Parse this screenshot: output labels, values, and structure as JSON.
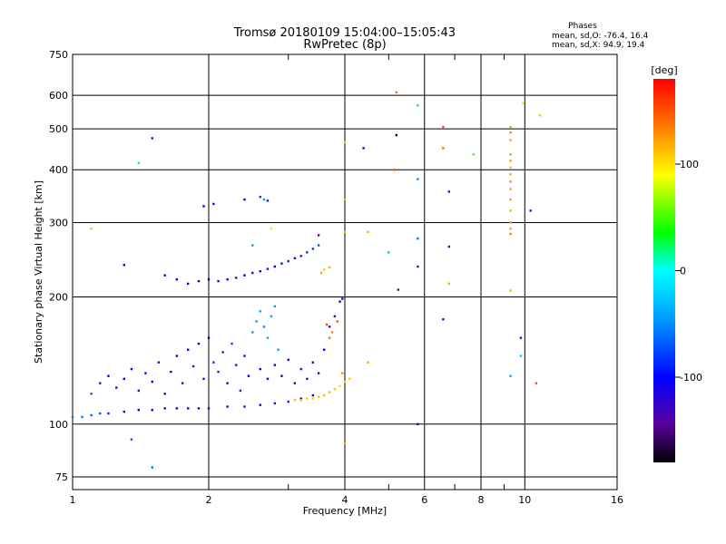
{
  "header": {
    "title_line1": "Tromsø 20180109 15:04:00–15:05:43",
    "title_line2": "RwPretec (8p)",
    "stats_heading": "Phases",
    "stats_o": "mean, sd,O: -76.4, 16.4",
    "stats_x": "mean, sd,X:  94.9, 19.4"
  },
  "colorbar": {
    "label": "[deg]",
    "range": [
      -180,
      180
    ],
    "ticks": [
      {
        "value": 100,
        "label": "100"
      },
      {
        "value": 0,
        "label": "0"
      },
      {
        "value": -100,
        "label": "-100"
      }
    ]
  },
  "chart_data": {
    "type": "scatter",
    "xlabel": "Frequency [MHz]",
    "ylabel": "Stationary phase Virtual Height [km]",
    "xscale": "log",
    "yscale": "log",
    "xlim": [
      1,
      16
    ],
    "ylim": [
      70,
      750
    ],
    "grid": true,
    "x_ticks": [
      {
        "value": 1,
        "label": "1",
        "grid": false
      },
      {
        "value": 2,
        "label": "2",
        "grid": true
      },
      {
        "value": 4,
        "label": "4",
        "grid": true
      },
      {
        "value": 6,
        "label": "6",
        "grid": true
      },
      {
        "value": 8,
        "label": "8",
        "grid": true
      },
      {
        "value": 10,
        "label": "10",
        "grid": true
      },
      {
        "value": 16,
        "label": "16",
        "grid": false
      }
    ],
    "x_minor": [
      3,
      5,
      7,
      9
    ],
    "y_ticks": [
      {
        "value": 75,
        "label": "75"
      },
      {
        "value": 100,
        "label": "100"
      },
      {
        "value": 200,
        "label": "200"
      },
      {
        "value": 300,
        "label": "300"
      },
      {
        "value": 400,
        "label": "400"
      },
      {
        "value": 500,
        "label": "500"
      },
      {
        "value": 600,
        "label": "600"
      },
      {
        "value": 750,
        "label": "750"
      }
    ],
    "color_by": "phase_deg",
    "points": [
      {
        "x": 1.0,
        "y": 104,
        "phase": -60
      },
      {
        "x": 1.05,
        "y": 104,
        "phase": -55
      },
      {
        "x": 1.1,
        "y": 105,
        "phase": -65
      },
      {
        "x": 1.15,
        "y": 106,
        "phase": -70
      },
      {
        "x": 1.2,
        "y": 106,
        "phase": -85
      },
      {
        "x": 1.3,
        "y": 107,
        "phase": -95
      },
      {
        "x": 1.4,
        "y": 108,
        "phase": -100
      },
      {
        "x": 1.5,
        "y": 108,
        "phase": -100
      },
      {
        "x": 1.6,
        "y": 109,
        "phase": -105
      },
      {
        "x": 1.7,
        "y": 109,
        "phase": -105
      },
      {
        "x": 1.8,
        "y": 109,
        "phase": -100
      },
      {
        "x": 1.9,
        "y": 109,
        "phase": -100
      },
      {
        "x": 2.0,
        "y": 109,
        "phase": -95
      },
      {
        "x": 2.2,
        "y": 110,
        "phase": -95
      },
      {
        "x": 2.4,
        "y": 110,
        "phase": -90
      },
      {
        "x": 2.6,
        "y": 111,
        "phase": -95
      },
      {
        "x": 2.8,
        "y": 112,
        "phase": -90
      },
      {
        "x": 3.0,
        "y": 113,
        "phase": -90
      },
      {
        "x": 3.2,
        "y": 115,
        "phase": -95
      },
      {
        "x": 3.4,
        "y": 117,
        "phase": -100
      },
      {
        "x": 1.1,
        "y": 118,
        "phase": -70
      },
      {
        "x": 1.15,
        "y": 125,
        "phase": -90
      },
      {
        "x": 1.2,
        "y": 130,
        "phase": -100
      },
      {
        "x": 1.25,
        "y": 122,
        "phase": -95
      },
      {
        "x": 1.3,
        "y": 128,
        "phase": -105
      },
      {
        "x": 1.35,
        "y": 135,
        "phase": -100
      },
      {
        "x": 1.4,
        "y": 120,
        "phase": -95
      },
      {
        "x": 1.45,
        "y": 132,
        "phase": -110
      },
      {
        "x": 1.5,
        "y": 126,
        "phase": -100
      },
      {
        "x": 1.55,
        "y": 140,
        "phase": -95
      },
      {
        "x": 1.6,
        "y": 118,
        "phase": -110
      },
      {
        "x": 1.65,
        "y": 133,
        "phase": -100
      },
      {
        "x": 1.7,
        "y": 145,
        "phase": -105
      },
      {
        "x": 1.75,
        "y": 125,
        "phase": -95
      },
      {
        "x": 1.8,
        "y": 150,
        "phase": -100
      },
      {
        "x": 1.85,
        "y": 137,
        "phase": -90
      },
      {
        "x": 1.9,
        "y": 155,
        "phase": -100
      },
      {
        "x": 1.95,
        "y": 128,
        "phase": -95
      },
      {
        "x": 2.0,
        "y": 160,
        "phase": -100
      },
      {
        "x": 2.05,
        "y": 140,
        "phase": -80
      },
      {
        "x": 2.1,
        "y": 133,
        "phase": -90
      },
      {
        "x": 2.15,
        "y": 148,
        "phase": -85
      },
      {
        "x": 2.2,
        "y": 125,
        "phase": -95
      },
      {
        "x": 2.25,
        "y": 155,
        "phase": -75
      },
      {
        "x": 2.3,
        "y": 138,
        "phase": -90
      },
      {
        "x": 2.35,
        "y": 120,
        "phase": -85
      },
      {
        "x": 2.4,
        "y": 145,
        "phase": -95
      },
      {
        "x": 2.45,
        "y": 130,
        "phase": -100
      },
      {
        "x": 2.5,
        "y": 165,
        "phase": -45
      },
      {
        "x": 2.55,
        "y": 175,
        "phase": -40
      },
      {
        "x": 2.6,
        "y": 185,
        "phase": -35
      },
      {
        "x": 2.65,
        "y": 170,
        "phase": -50
      },
      {
        "x": 2.7,
        "y": 160,
        "phase": -40
      },
      {
        "x": 2.75,
        "y": 180,
        "phase": -35
      },
      {
        "x": 2.8,
        "y": 190,
        "phase": -45
      },
      {
        "x": 2.85,
        "y": 150,
        "phase": -40
      },
      {
        "x": 2.6,
        "y": 135,
        "phase": -100
      },
      {
        "x": 2.7,
        "y": 128,
        "phase": -110
      },
      {
        "x": 2.8,
        "y": 138,
        "phase": -105
      },
      {
        "x": 2.9,
        "y": 130,
        "phase": -100
      },
      {
        "x": 3.0,
        "y": 142,
        "phase": -110
      },
      {
        "x": 3.1,
        "y": 125,
        "phase": -120
      },
      {
        "x": 3.2,
        "y": 135,
        "phase": -130
      },
      {
        "x": 3.3,
        "y": 128,
        "phase": -140
      },
      {
        "x": 3.4,
        "y": 140,
        "phase": -120
      },
      {
        "x": 3.5,
        "y": 132,
        "phase": -110
      },
      {
        "x": 3.6,
        "y": 150,
        "phase": -100
      },
      {
        "x": 3.7,
        "y": 170,
        "phase": -130
      },
      {
        "x": 3.8,
        "y": 180,
        "phase": -135
      },
      {
        "x": 3.9,
        "y": 195,
        "phase": -100
      },
      {
        "x": 3.1,
        "y": 114,
        "phase": 110
      },
      {
        "x": 3.2,
        "y": 114,
        "phase": 115
      },
      {
        "x": 3.3,
        "y": 115,
        "phase": 110
      },
      {
        "x": 3.4,
        "y": 115,
        "phase": 108
      },
      {
        "x": 3.5,
        "y": 116,
        "phase": 112
      },
      {
        "x": 3.6,
        "y": 117,
        "phase": 110
      },
      {
        "x": 3.7,
        "y": 119,
        "phase": 115
      },
      {
        "x": 3.8,
        "y": 121,
        "phase": 110
      },
      {
        "x": 3.9,
        "y": 123,
        "phase": 100
      },
      {
        "x": 4.0,
        "y": 126,
        "phase": 105
      },
      {
        "x": 4.1,
        "y": 128,
        "phase": 110
      },
      {
        "x": 3.95,
        "y": 132,
        "phase": 130
      },
      {
        "x": 3.7,
        "y": 160,
        "phase": 140
      },
      {
        "x": 3.75,
        "y": 165,
        "phase": 130
      },
      {
        "x": 3.85,
        "y": 175,
        "phase": 150
      },
      {
        "x": 3.65,
        "y": 172,
        "phase": 160
      },
      {
        "x": 1.6,
        "y": 225,
        "phase": -100
      },
      {
        "x": 1.7,
        "y": 220,
        "phase": -105
      },
      {
        "x": 1.8,
        "y": 215,
        "phase": -100
      },
      {
        "x": 1.9,
        "y": 218,
        "phase": -110
      },
      {
        "x": 2.0,
        "y": 220,
        "phase": -100
      },
      {
        "x": 2.1,
        "y": 218,
        "phase": -105
      },
      {
        "x": 2.2,
        "y": 220,
        "phase": -100
      },
      {
        "x": 2.3,
        "y": 222,
        "phase": -95
      },
      {
        "x": 2.4,
        "y": 225,
        "phase": -100
      },
      {
        "x": 2.5,
        "y": 228,
        "phase": -95
      },
      {
        "x": 2.6,
        "y": 230,
        "phase": -100
      },
      {
        "x": 2.7,
        "y": 233,
        "phase": -95
      },
      {
        "x": 2.8,
        "y": 236,
        "phase": -100
      },
      {
        "x": 2.9,
        "y": 240,
        "phase": -95
      },
      {
        "x": 3.0,
        "y": 243,
        "phase": -90
      },
      {
        "x": 3.1,
        "y": 247,
        "phase": -95
      },
      {
        "x": 3.2,
        "y": 250,
        "phase": -90
      },
      {
        "x": 3.3,
        "y": 255,
        "phase": -85
      },
      {
        "x": 3.4,
        "y": 260,
        "phase": -80
      },
      {
        "x": 3.5,
        "y": 265,
        "phase": -70
      },
      {
        "x": 3.5,
        "y": 280,
        "phase": -140
      },
      {
        "x": 3.6,
        "y": 232,
        "phase": 110
      },
      {
        "x": 3.7,
        "y": 235,
        "phase": 115
      },
      {
        "x": 3.55,
        "y": 228,
        "phase": 120
      },
      {
        "x": 1.5,
        "y": 475,
        "phase": -130
      },
      {
        "x": 1.4,
        "y": 415,
        "phase": 20
      },
      {
        "x": 1.1,
        "y": 290,
        "phase": 110
      },
      {
        "x": 1.3,
        "y": 238,
        "phase": -100
      },
      {
        "x": 1.95,
        "y": 328,
        "phase": -110
      },
      {
        "x": 2.05,
        "y": 332,
        "phase": -100
      },
      {
        "x": 2.4,
        "y": 340,
        "phase": -100
      },
      {
        "x": 2.6,
        "y": 345,
        "phase": -80
      },
      {
        "x": 2.65,
        "y": 340,
        "phase": -40
      },
      {
        "x": 2.7,
        "y": 338,
        "phase": -90
      },
      {
        "x": 2.75,
        "y": 290,
        "phase": 100
      },
      {
        "x": 2.5,
        "y": 265,
        "phase": -40
      },
      {
        "x": 4.0,
        "y": 465,
        "phase": 110
      },
      {
        "x": 4.0,
        "y": 340,
        "phase": 115
      },
      {
        "x": 4.0,
        "y": 285,
        "phase": 110
      },
      {
        "x": 3.95,
        "y": 198,
        "phase": -110
      },
      {
        "x": 4.4,
        "y": 450,
        "phase": -110
      },
      {
        "x": 4.5,
        "y": 285,
        "phase": 115
      },
      {
        "x": 4.5,
        "y": 140,
        "phase": 120
      },
      {
        "x": 5.2,
        "y": 610,
        "phase": 140
      },
      {
        "x": 5.2,
        "y": 483,
        "phase": -170
      },
      {
        "x": 5.15,
        "y": 400,
        "phase": 150
      },
      {
        "x": 5.25,
        "y": 208,
        "phase": -140
      },
      {
        "x": 5.0,
        "y": 255,
        "phase": -30
      },
      {
        "x": 5.8,
        "y": 568,
        "phase": -20
      },
      {
        "x": 5.8,
        "y": 380,
        "phase": -50
      },
      {
        "x": 5.8,
        "y": 275,
        "phase": -60
      },
      {
        "x": 5.8,
        "y": 236,
        "phase": -140
      },
      {
        "x": 5.8,
        "y": 100,
        "phase": -100
      },
      {
        "x": 6.6,
        "y": 505,
        "phase": 150
      },
      {
        "x": 6.6,
        "y": 450,
        "phase": 140
      },
      {
        "x": 6.6,
        "y": 177,
        "phase": -120
      },
      {
        "x": 6.8,
        "y": 355,
        "phase": -90
      },
      {
        "x": 6.8,
        "y": 263,
        "phase": -140
      },
      {
        "x": 6.8,
        "y": 215,
        "phase": 120
      },
      {
        "x": 7.7,
        "y": 435,
        "phase": 50
      },
      {
        "x": 9.3,
        "y": 505,
        "phase": 120
      },
      {
        "x": 9.3,
        "y": 490,
        "phase": 130
      },
      {
        "x": 9.3,
        "y": 470,
        "phase": 120
      },
      {
        "x": 9.3,
        "y": 435,
        "phase": 125
      },
      {
        "x": 9.3,
        "y": 420,
        "phase": 120
      },
      {
        "x": 9.3,
        "y": 405,
        "phase": 115
      },
      {
        "x": 9.3,
        "y": 390,
        "phase": 120
      },
      {
        "x": 9.3,
        "y": 375,
        "phase": 130
      },
      {
        "x": 9.3,
        "y": 360,
        "phase": 120
      },
      {
        "x": 9.3,
        "y": 340,
        "phase": 125
      },
      {
        "x": 9.3,
        "y": 320,
        "phase": 120
      },
      {
        "x": 9.3,
        "y": 300,
        "phase": 125
      },
      {
        "x": 9.3,
        "y": 290,
        "phase": 120
      },
      {
        "x": 9.3,
        "y": 282,
        "phase": 130
      },
      {
        "x": 9.3,
        "y": 207,
        "phase": 115
      },
      {
        "x": 9.3,
        "y": 130,
        "phase": -40
      },
      {
        "x": 9.8,
        "y": 160,
        "phase": -90
      },
      {
        "x": 9.8,
        "y": 145,
        "phase": -30
      },
      {
        "x": 9.9,
        "y": 575,
        "phase": 100
      },
      {
        "x": 10.3,
        "y": 320,
        "phase": -90
      },
      {
        "x": 10.8,
        "y": 538,
        "phase": 110
      },
      {
        "x": 10.6,
        "y": 125,
        "phase": 150
      },
      {
        "x": 4.0,
        "y": 90,
        "phase": 120
      },
      {
        "x": 1.35,
        "y": 92,
        "phase": -70
      },
      {
        "x": 1.5,
        "y": 79,
        "phase": -60
      }
    ]
  }
}
